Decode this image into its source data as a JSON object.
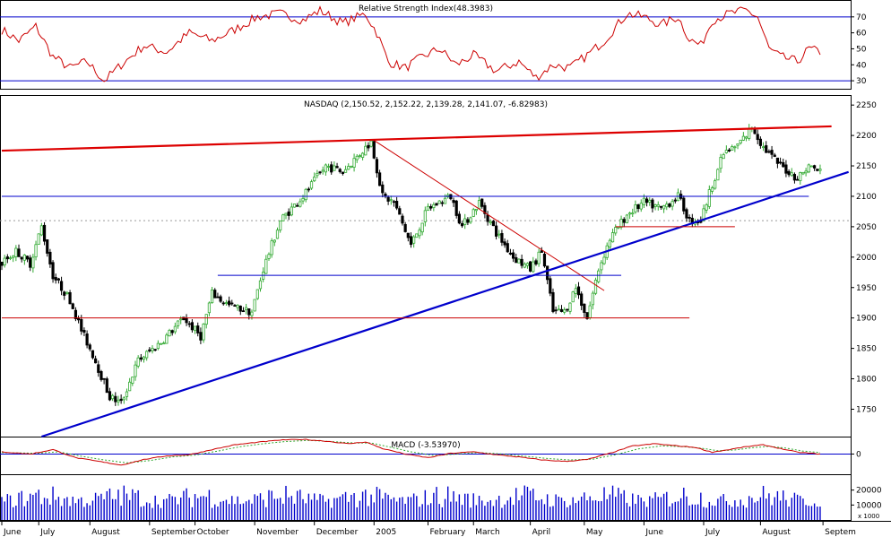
{
  "panels": {
    "rsi": {
      "title": "Relative Strength Index(48.3983)",
      "range": [
        25,
        80
      ],
      "ticks": [
        "70",
        "60",
        "50",
        "40",
        "30"
      ],
      "tick_values": [
        70,
        60,
        50,
        40,
        30
      ],
      "levels": [
        70,
        30
      ],
      "color": "#cc0000"
    },
    "price": {
      "title": "NASDAQ (2,150.52, 2,152.22, 2,139.28, 2,141.07, -6.82983)",
      "range": [
        1705,
        2265
      ],
      "ticks": [
        "2250",
        "2200",
        "2150",
        "2100",
        "2050",
        "2000",
        "1950",
        "1900",
        "1850",
        "1800",
        "1750"
      ],
      "tick_values": [
        2250,
        2200,
        2150,
        2100,
        2050,
        2000,
        1950,
        1900,
        1850,
        1800,
        1750
      ],
      "dotted_grid": [
        2060
      ],
      "up_color": "#33aa33",
      "down_color": "#000000"
    },
    "macd": {
      "title": "MACD (-3.53970)",
      "range": [
        -55,
        45
      ],
      "ticks": [
        "0"
      ],
      "tick_values": [
        0
      ],
      "macd_color": "#cc0000",
      "signal_color": "#33aa33"
    },
    "volume": {
      "ticks": [
        "20000",
        "10000"
      ],
      "tick_values": [
        20000,
        10000
      ],
      "unit": "x 1000",
      "range": [
        0,
        30000
      ],
      "color": "#0000cc"
    }
  },
  "x_axis": {
    "months": [
      "June",
      "July",
      "August",
      "September",
      "October",
      "November",
      "December",
      "2005",
      "February",
      "March",
      "April",
      "May",
      "June",
      "July",
      "August",
      "Septem"
    ],
    "month_index": [
      0,
      13,
      31,
      52,
      68,
      89,
      110,
      131,
      150,
      166,
      186,
      205,
      226,
      247,
      267,
      289
    ]
  },
  "chart_data": {
    "type": "candlestick",
    "title": "NASDAQ (2,150.52, 2,152.22, 2,139.28, 2,141.07, -6.82983)",
    "last_bar": {
      "open": 2150.52,
      "high": 2152.22,
      "low": 2139.28,
      "close": 2141.07,
      "change": -6.82983
    },
    "bars": 288,
    "close_anchors": [
      [
        0,
        1990
      ],
      [
        5,
        2010
      ],
      [
        10,
        1990
      ],
      [
        14,
        2050
      ],
      [
        18,
        1970
      ],
      [
        24,
        1930
      ],
      [
        28,
        1880
      ],
      [
        32,
        1840
      ],
      [
        38,
        1770
      ],
      [
        42,
        1760
      ],
      [
        48,
        1830
      ],
      [
        56,
        1860
      ],
      [
        64,
        1900
      ],
      [
        70,
        1870
      ],
      [
        74,
        1940
      ],
      [
        80,
        1920
      ],
      [
        88,
        1910
      ],
      [
        92,
        1980
      ],
      [
        98,
        2060
      ],
      [
        106,
        2100
      ],
      [
        114,
        2150
      ],
      [
        120,
        2140
      ],
      [
        126,
        2170
      ],
      [
        130,
        2190
      ],
      [
        134,
        2100
      ],
      [
        138,
        2090
      ],
      [
        144,
        2020
      ],
      [
        150,
        2080
      ],
      [
        158,
        2100
      ],
      [
        162,
        2050
      ],
      [
        168,
        2090
      ],
      [
        174,
        2040
      ],
      [
        180,
        2000
      ],
      [
        186,
        1980
      ],
      [
        190,
        2010
      ],
      [
        194,
        1910
      ],
      [
        198,
        1910
      ],
      [
        202,
        1950
      ],
      [
        206,
        1900
      ],
      [
        210,
        1980
      ],
      [
        214,
        2030
      ],
      [
        220,
        2070
      ],
      [
        226,
        2090
      ],
      [
        232,
        2080
      ],
      [
        238,
        2100
      ],
      [
        242,
        2060
      ],
      [
        246,
        2060
      ],
      [
        250,
        2120
      ],
      [
        254,
        2170
      ],
      [
        258,
        2180
      ],
      [
        262,
        2200
      ],
      [
        264,
        2215
      ],
      [
        268,
        2180
      ],
      [
        274,
        2150
      ],
      [
        280,
        2130
      ],
      [
        284,
        2150
      ],
      [
        288,
        2141
      ]
    ],
    "trendlines": [
      {
        "name": "upper-resistance",
        "color": "#dd0000",
        "points": [
          [
            0,
            2175
          ],
          [
            292,
            2215
          ]
        ]
      },
      {
        "name": "down-trend",
        "color": "#cc0000",
        "points": [
          [
            131,
            2192
          ],
          [
            212,
            1945
          ]
        ]
      },
      {
        "name": "long-support",
        "color": "#0000cc",
        "points": [
          [
            14,
            1705
          ],
          [
            298,
            2140
          ]
        ]
      },
      {
        "name": "h-2100",
        "color": "#0000cc",
        "points": [
          [
            0,
            2100
          ],
          [
            284,
            2100
          ]
        ]
      },
      {
        "name": "h-1970",
        "color": "#0000cc",
        "points": [
          [
            76,
            1970
          ],
          [
            218,
            1970
          ]
        ]
      },
      {
        "name": "h-1900",
        "color": "#cc0000",
        "points": [
          [
            0,
            1900
          ],
          [
            242,
            1900
          ]
        ]
      },
      {
        "name": "h-2050",
        "color": "#cc0000",
        "points": [
          [
            216,
            2050
          ],
          [
            258,
            2050
          ]
        ]
      }
    ],
    "rsi_anchors": [
      [
        0,
        62
      ],
      [
        6,
        55
      ],
      [
        12,
        64
      ],
      [
        18,
        45
      ],
      [
        24,
        38
      ],
      [
        30,
        42
      ],
      [
        36,
        30
      ],
      [
        42,
        40
      ],
      [
        50,
        52
      ],
      [
        58,
        48
      ],
      [
        66,
        60
      ],
      [
        74,
        55
      ],
      [
        82,
        62
      ],
      [
        90,
        70
      ],
      [
        98,
        72
      ],
      [
        106,
        68
      ],
      [
        112,
        74
      ],
      [
        120,
        66
      ],
      [
        128,
        72
      ],
      [
        132,
        60
      ],
      [
        136,
        42
      ],
      [
        142,
        38
      ],
      [
        148,
        45
      ],
      [
        154,
        50
      ],
      [
        160,
        40
      ],
      [
        166,
        46
      ],
      [
        174,
        36
      ],
      [
        182,
        42
      ],
      [
        188,
        32
      ],
      [
        194,
        40
      ],
      [
        200,
        38
      ],
      [
        206,
        46
      ],
      [
        212,
        55
      ],
      [
        220,
        72
      ],
      [
        226,
        70
      ],
      [
        232,
        65
      ],
      [
        238,
        70
      ],
      [
        242,
        56
      ],
      [
        246,
        52
      ],
      [
        250,
        68
      ],
      [
        256,
        72
      ],
      [
        262,
        74
      ],
      [
        266,
        70
      ],
      [
        270,
        50
      ],
      [
        274,
        45
      ],
      [
        280,
        42
      ],
      [
        284,
        50
      ],
      [
        288,
        48
      ]
    ],
    "macd_anchors": [
      [
        0,
        6
      ],
      [
        10,
        0
      ],
      [
        18,
        12
      ],
      [
        26,
        -10
      ],
      [
        34,
        -20
      ],
      [
        42,
        -30
      ],
      [
        50,
        -15
      ],
      [
        58,
        -5
      ],
      [
        66,
        -2
      ],
      [
        74,
        12
      ],
      [
        82,
        25
      ],
      [
        90,
        32
      ],
      [
        98,
        38
      ],
      [
        106,
        40
      ],
      [
        114,
        35
      ],
      [
        122,
        28
      ],
      [
        128,
        33
      ],
      [
        134,
        15
      ],
      [
        142,
        0
      ],
      [
        150,
        -10
      ],
      [
        158,
        2
      ],
      [
        166,
        6
      ],
      [
        174,
        -2
      ],
      [
        182,
        -8
      ],
      [
        190,
        -16
      ],
      [
        198,
        -20
      ],
      [
        206,
        -15
      ],
      [
        214,
        2
      ],
      [
        222,
        22
      ],
      [
        230,
        28
      ],
      [
        238,
        22
      ],
      [
        244,
        18
      ],
      [
        250,
        5
      ],
      [
        256,
        12
      ],
      [
        262,
        20
      ],
      [
        268,
        25
      ],
      [
        274,
        15
      ],
      [
        280,
        5
      ],
      [
        288,
        0
      ]
    ],
    "signal_anchors": [
      [
        0,
        4
      ],
      [
        12,
        2
      ],
      [
        20,
        6
      ],
      [
        28,
        -6
      ],
      [
        36,
        -16
      ],
      [
        44,
        -24
      ],
      [
        52,
        -18
      ],
      [
        60,
        -8
      ],
      [
        68,
        -3
      ],
      [
        76,
        8
      ],
      [
        84,
        20
      ],
      [
        92,
        28
      ],
      [
        100,
        34
      ],
      [
        108,
        37
      ],
      [
        116,
        34
      ],
      [
        124,
        30
      ],
      [
        130,
        30
      ],
      [
        136,
        20
      ],
      [
        144,
        6
      ],
      [
        152,
        -4
      ],
      [
        160,
        0
      ],
      [
        168,
        4
      ],
      [
        176,
        0
      ],
      [
        184,
        -6
      ],
      [
        192,
        -12
      ],
      [
        200,
        -16
      ],
      [
        208,
        -14
      ],
      [
        216,
        -2
      ],
      [
        224,
        14
      ],
      [
        232,
        22
      ],
      [
        240,
        20
      ],
      [
        246,
        16
      ],
      [
        252,
        9
      ],
      [
        258,
        11
      ],
      [
        264,
        17
      ],
      [
        270,
        21
      ],
      [
        276,
        16
      ],
      [
        282,
        8
      ],
      [
        288,
        4
      ]
    ],
    "volume_range": [
      8000,
      24000
    ]
  }
}
